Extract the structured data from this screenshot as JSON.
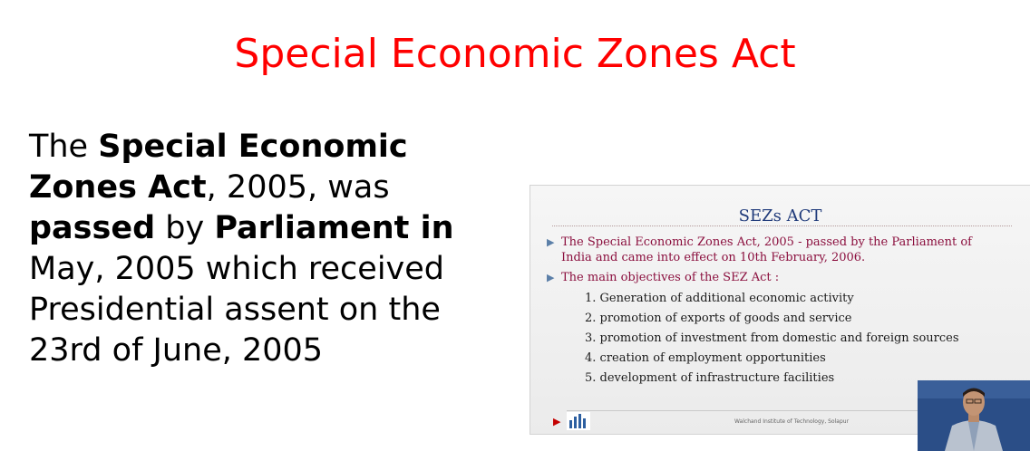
{
  "title": "Special Economic Zones Act",
  "paragraph": {
    "p1": "The ",
    "b1": "Special Economic Zones Act",
    "p2": ", 2005, was ",
    "b2": "passed",
    "p3": " by ",
    "b3": "Parliament in",
    "p4": " May, 2005 which received Presidential assent on the 23rd of June, 2005"
  },
  "thumbnail": {
    "heading": "SEZs ACT",
    "bullets": [
      "The Special Economic Zones Act, 2005 - passed by the Parliament of India and came into effect on 10th February, 2006.",
      "The main objectives of the SEZ Act :"
    ],
    "objectives": [
      "1. Generation of additional economic activity",
      "2. promotion of exports of goods and service",
      "3. promotion of investment from domestic and foreign sources",
      "4. creation of employment opportunities",
      "5. development of infrastructure facilities"
    ],
    "footer": "Walchand Institute of Technology, Solapur"
  },
  "colors": {
    "title": "#ff0000",
    "body_text": "#000000",
    "thumb_heading": "#1f3a7a",
    "thumb_bullet": "#8b0f3e"
  },
  "icons": {
    "bullet": "triangle-right-icon",
    "footer_arrow": "triangle-right-icon",
    "logo": "institute-logo-icon"
  }
}
